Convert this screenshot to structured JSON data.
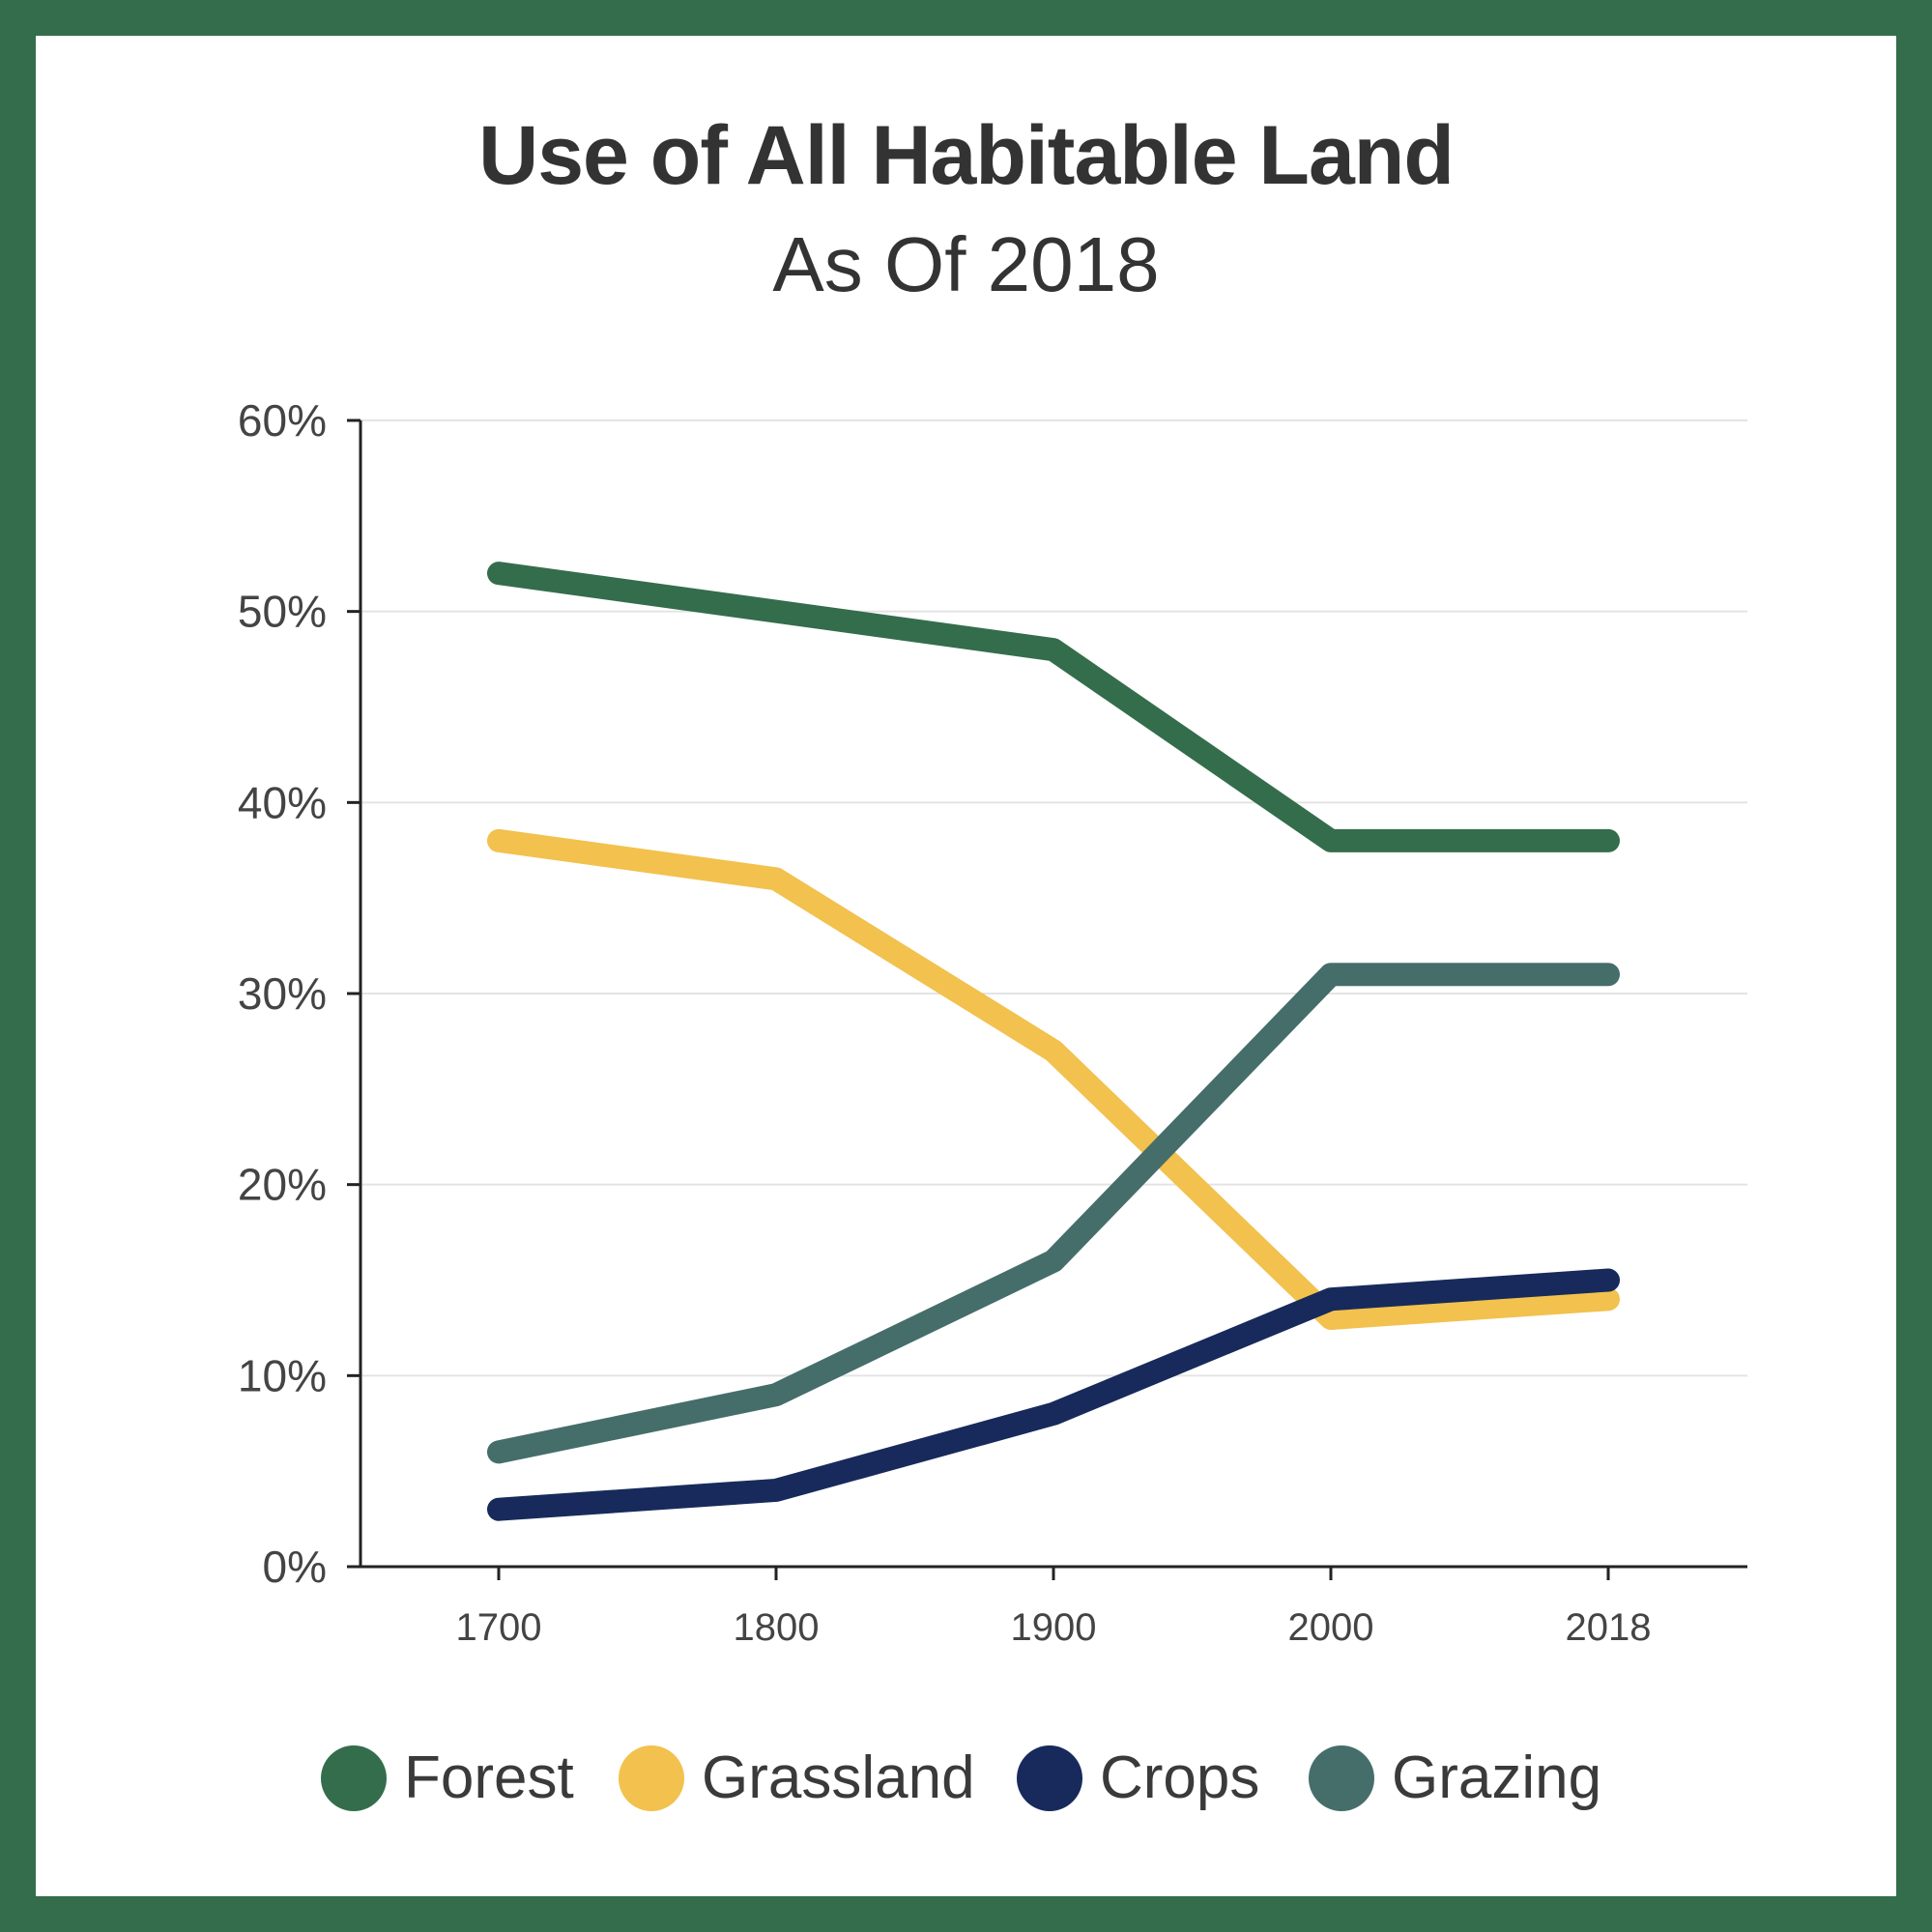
{
  "chart_data": {
    "type": "line",
    "title": "Use of All Habitable Land",
    "subtitle": "As Of 2018",
    "x": [
      "1700",
      "1800",
      "1900",
      "2000",
      "2018"
    ],
    "y_ticks": [
      "0%",
      "10%",
      "20%",
      "30%",
      "40%",
      "50%",
      "60%"
    ],
    "ylim": [
      0,
      60
    ],
    "grid": true,
    "legend_position": "bottom",
    "series": [
      {
        "name": "Forest",
        "color": "#346d4b",
        "values": [
          52,
          50,
          48,
          38,
          38
        ]
      },
      {
        "name": "Grassland",
        "color": "#f2c14e",
        "values": [
          38,
          36,
          27,
          13,
          14
        ]
      },
      {
        "name": "Crops",
        "color": "#172a5b",
        "values": [
          3,
          4,
          8,
          14,
          15
        ]
      },
      {
        "name": "Grazing",
        "color": "#456e6b",
        "values": [
          6,
          9,
          16,
          31,
          31
        ]
      }
    ]
  }
}
